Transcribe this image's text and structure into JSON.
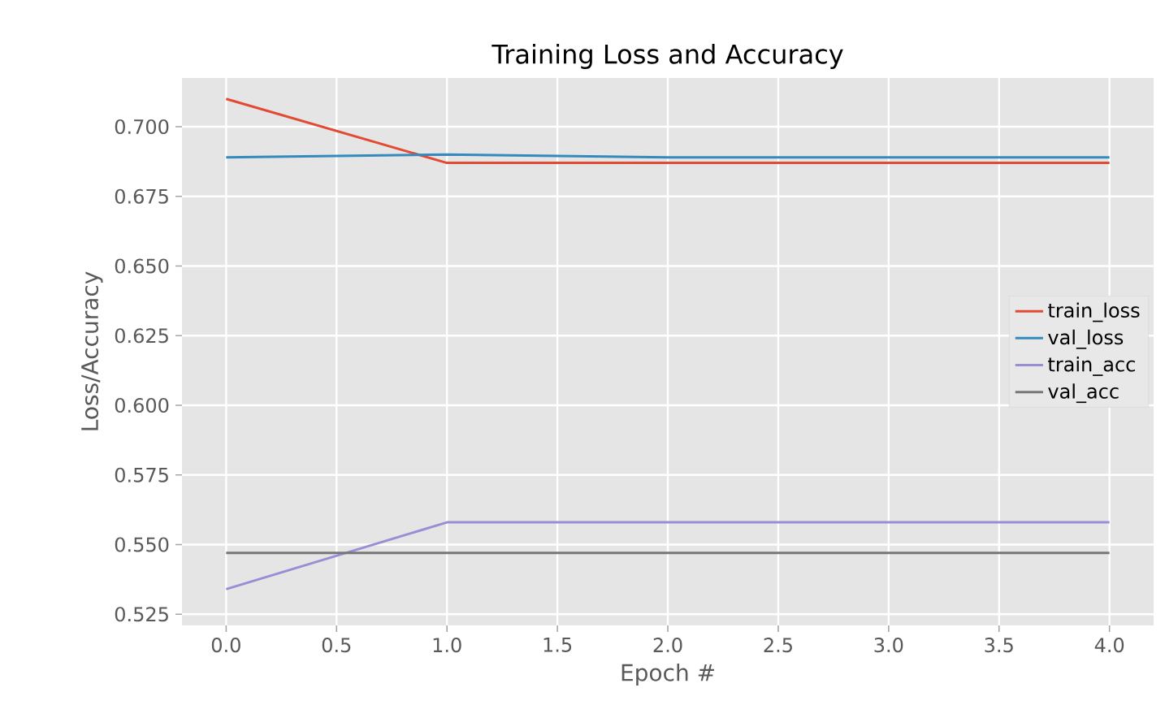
{
  "chart_data": {
    "type": "line",
    "title": "Training Loss and Accuracy",
    "xlabel": "Epoch #",
    "ylabel": "Loss/Accuracy",
    "x": [
      0,
      1,
      2,
      3,
      4
    ],
    "series": [
      {
        "name": "train_loss",
        "color": "#e24a33",
        "values": [
          0.71,
          0.687,
          0.687,
          0.687,
          0.687
        ]
      },
      {
        "name": "val_loss",
        "color": "#348abd",
        "values": [
          0.689,
          0.69,
          0.689,
          0.689,
          0.689
        ]
      },
      {
        "name": "train_acc",
        "color": "#988ed5",
        "values": [
          0.534,
          0.558,
          0.558,
          0.558,
          0.558
        ]
      },
      {
        "name": "val_acc",
        "color": "#777777",
        "values": [
          0.547,
          0.547,
          0.547,
          0.547,
          0.547
        ]
      }
    ],
    "xlim": [
      -0.2,
      4.2
    ],
    "ylim": [
      0.521,
      0.7175
    ],
    "xticks": [
      {
        "value": 0,
        "label": "0.0"
      },
      {
        "value": 0.5,
        "label": "0.5"
      },
      {
        "value": 1,
        "label": "1.0"
      },
      {
        "value": 1.5,
        "label": "1.5"
      },
      {
        "value": 2,
        "label": "2.0"
      },
      {
        "value": 2.5,
        "label": "2.5"
      },
      {
        "value": 3,
        "label": "3.0"
      },
      {
        "value": 3.5,
        "label": "3.5"
      },
      {
        "value": 4,
        "label": "4.0"
      }
    ],
    "yticks": [
      {
        "value": 0.525,
        "label": "0.525"
      },
      {
        "value": 0.55,
        "label": "0.550"
      },
      {
        "value": 0.575,
        "label": "0.575"
      },
      {
        "value": 0.6,
        "label": "0.600"
      },
      {
        "value": 0.625,
        "label": "0.625"
      },
      {
        "value": 0.65,
        "label": "0.650"
      },
      {
        "value": 0.675,
        "label": "0.675"
      },
      {
        "value": 0.7,
        "label": "0.700"
      }
    ],
    "grid": true,
    "legend": "right",
    "marker": "none",
    "line_style": "solid"
  }
}
